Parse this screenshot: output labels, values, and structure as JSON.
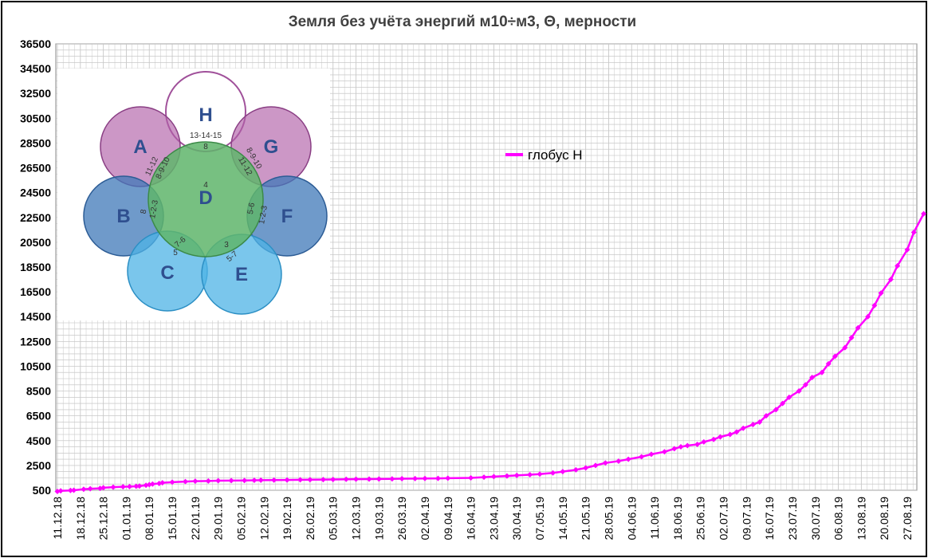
{
  "chart_data": {
    "type": "line",
    "title": "Земля  без учёта  энергий м10÷м3, Θ, мерности",
    "xlabel": "",
    "ylabel": "",
    "ylim": [
      500,
      36500
    ],
    "y_ticks": [
      500,
      2500,
      4500,
      6500,
      8500,
      10500,
      12500,
      14500,
      16500,
      18500,
      20500,
      22500,
      24500,
      26500,
      28500,
      30500,
      32500,
      34500,
      36500
    ],
    "x_tick_labels": [
      "11.12.18",
      "18.12.18",
      "25.12.18",
      "01.01.19",
      "08.01.19",
      "15.01.19",
      "22.01.19",
      "29.01.19",
      "05.02.19",
      "12.02.19",
      "19.02.19",
      "26.02.19",
      "05.03.19",
      "12.03.19",
      "19.03.19",
      "26.03.19",
      "02.04.19",
      "09.04.19",
      "16.04.19",
      "23.04.19",
      "30.04.19",
      "07.05.19",
      "14.05.19",
      "21.05.19",
      "28.05.19",
      "04.06.19",
      "11.06.19",
      "18.06.19",
      "25.06.19",
      "02.07.19",
      "09.07.19",
      "16.07.19",
      "23.07.19",
      "30.07.19",
      "06.08.19",
      "13.08.19",
      "20.08.19",
      "27.08.19"
    ],
    "grid": true,
    "legend_position": "upper-center",
    "series": [
      {
        "name": "глобус Н",
        "color": "#ff00ff",
        "x": [
          0,
          1,
          4,
          5,
          8,
          10,
          13,
          14,
          17,
          20,
          22,
          24,
          25,
          27,
          28,
          29,
          31,
          32,
          35,
          39,
          42,
          46,
          49,
          53,
          57,
          60,
          62,
          66,
          70,
          74,
          77,
          81,
          84,
          88,
          91,
          95,
          98,
          102,
          105,
          109,
          112,
          116,
          119,
          126,
          130,
          133,
          137,
          140,
          144,
          147,
          151,
          154,
          158,
          161,
          164,
          167,
          171,
          174,
          178,
          181,
          185,
          188,
          190,
          192,
          195,
          197,
          200,
          202,
          205,
          207,
          209,
          212,
          214,
          216,
          219,
          221,
          223,
          226,
          228,
          230,
          233,
          235,
          237,
          240,
          242,
          244,
          247,
          249,
          251,
          254,
          256,
          259,
          261,
          264
        ],
        "values": [
          400,
          450,
          480,
          500,
          580,
          620,
          650,
          700,
          750,
          780,
          800,
          820,
          840,
          900,
          950,
          1000,
          1050,
          1100,
          1150,
          1200,
          1230,
          1250,
          1270,
          1280,
          1290,
          1300,
          1310,
          1320,
          1330,
          1340,
          1350,
          1360,
          1370,
          1380,
          1390,
          1400,
          1410,
          1420,
          1430,
          1440,
          1450,
          1460,
          1470,
          1500,
          1550,
          1600,
          1650,
          1700,
          1750,
          1800,
          1900,
          2000,
          2150,
          2300,
          2500,
          2700,
          2850,
          3000,
          3200,
          3400,
          3600,
          3850,
          4000,
          4100,
          4200,
          4400,
          4600,
          4800,
          5000,
          5200,
          5500,
          5800,
          6000,
          6500,
          7000,
          7500,
          8000,
          8500,
          9000,
          9600,
          10000,
          10700,
          11300,
          12000,
          12800,
          13600,
          14500,
          15400,
          16400,
          17500,
          18600,
          19900,
          21300,
          22800
        ]
      }
    ]
  },
  "series_labels": {
    "legend_label": "глобус Н"
  },
  "diagram": {
    "circles": [
      {
        "letter": "H",
        "color": "#ffffff",
        "stroke": "#a0509a"
      },
      {
        "letter": "A",
        "color": "#b15fa8",
        "stroke": "#8a3f84"
      },
      {
        "letter": "G",
        "color": "#b15fa8",
        "stroke": "#8a3f84"
      },
      {
        "letter": "B",
        "color": "#3f78b8",
        "stroke": "#2c5c95"
      },
      {
        "letter": "F",
        "color": "#3f78b8",
        "stroke": "#2c5c95"
      },
      {
        "letter": "C",
        "color": "#4db3e6",
        "stroke": "#2c8fc4"
      },
      {
        "letter": "E",
        "color": "#4db3e6",
        "stroke": "#2c8fc4"
      }
    ],
    "center": {
      "letter": "D",
      "label": "4",
      "color": "#5fb56b"
    },
    "labels": {
      "h_numbers": "13-14-15",
      "h_inner": "8",
      "a_inner1": "11-12",
      "a_inner2": "8-9-10",
      "g_inner1": "8-9-10",
      "g_inner2": "11-12",
      "b_inner1": "8",
      "b_inner2": "1-2-3",
      "f_inner1": "5-6",
      "f_inner2": "1-2-3",
      "c_inner1": "7-6",
      "c_inner2": "5",
      "e_inner1": "3",
      "e_inner2": "5-7"
    }
  }
}
